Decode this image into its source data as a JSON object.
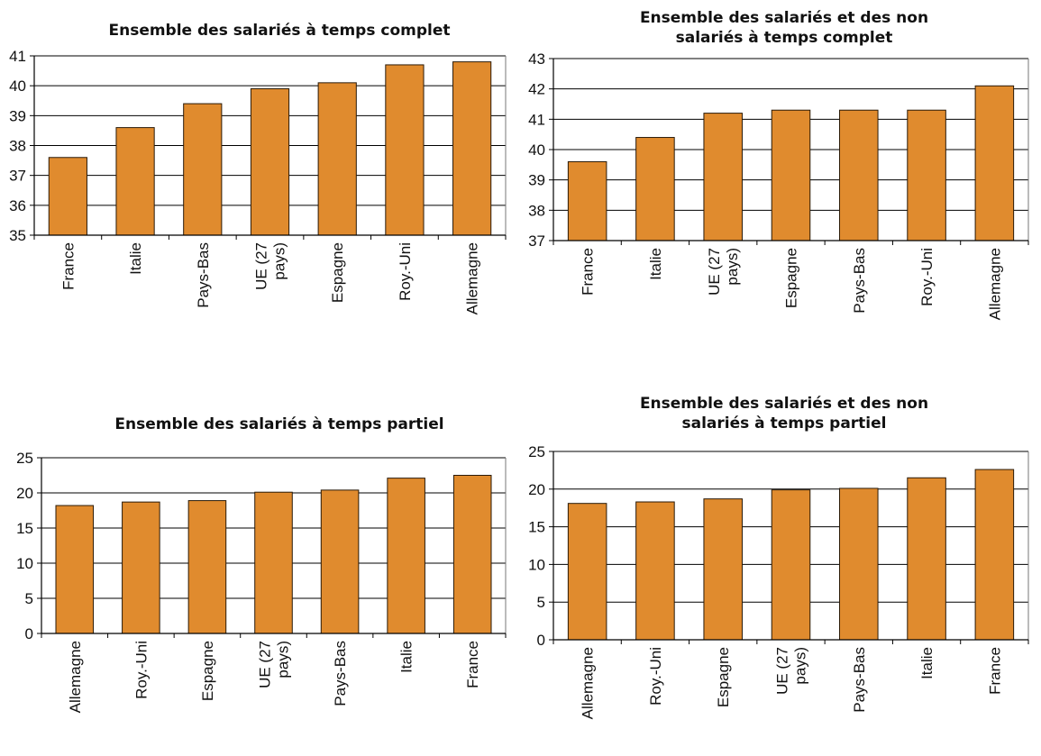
{
  "colors": {
    "bar": "#e08b2e",
    "bar_stroke": "#2a1a08",
    "axis": "#000000",
    "grid": "#000000"
  },
  "chart_data": [
    {
      "type": "bar",
      "title": "Ensemble des salariés à temps complet",
      "categories": [
        "France",
        "Italie",
        "Pays-Bas",
        "UE (27 pays)",
        "Espagne",
        "Roy.-Uni",
        "Allemagne"
      ],
      "values": [
        37.6,
        38.6,
        39.4,
        39.9,
        40.1,
        40.7,
        40.8
      ],
      "ylim": [
        35,
        41
      ],
      "yticks": [
        35,
        36,
        37,
        38,
        39,
        40,
        41
      ],
      "grid": true
    },
    {
      "type": "bar",
      "title": "Ensemble des salariés et des non salariés à temps complet",
      "categories": [
        "France",
        "Italie",
        "UE (27 pays)",
        "Espagne",
        "Pays-Bas",
        "Roy.-Uni",
        "Allemagne"
      ],
      "values": [
        39.6,
        40.4,
        41.2,
        41.3,
        41.3,
        41.3,
        42.1
      ],
      "ylim": [
        37,
        43
      ],
      "yticks": [
        37,
        38,
        39,
        40,
        41,
        42,
        43
      ],
      "grid": true
    },
    {
      "type": "bar",
      "title": "Ensemble des salariés à temps partiel",
      "categories": [
        "Allemagne",
        "Roy.-Uni",
        "Espagne",
        "UE (27 pays)",
        "Pays-Bas",
        "Italie",
        "France"
      ],
      "values": [
        18.2,
        18.7,
        18.9,
        20.1,
        20.4,
        22.1,
        22.5
      ],
      "ylim": [
        0,
        25
      ],
      "yticks": [
        0,
        5,
        10,
        15,
        20,
        25
      ],
      "grid": true
    },
    {
      "type": "bar",
      "title": "Ensemble des salariés et des non salariés à temps partiel",
      "categories": [
        "Allemagne",
        "Roy.-Uni",
        "Espagne",
        "UE (27 pays)",
        "Pays-Bas",
        "Italie",
        "France"
      ],
      "values": [
        18.1,
        18.3,
        18.7,
        19.9,
        20.1,
        21.5,
        22.6
      ],
      "ylim": [
        0,
        25
      ],
      "yticks": [
        0,
        5,
        10,
        15,
        20,
        25
      ],
      "grid": true
    }
  ]
}
